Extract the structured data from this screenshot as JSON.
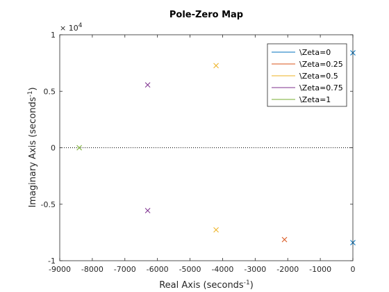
{
  "chart_data": {
    "type": "scatter",
    "title": "Pole-Zero Map",
    "xlabel": "Real Axis (seconds",
    "xlabel_sup": "-1",
    "xlabel_close": ")",
    "ylabel": "Imaginary Axis (seconds",
    "ylabel_sup": "-1",
    "ylabel_close": ")",
    "y_exponent_base": "× 10",
    "y_exponent_power": "4",
    "xlim": [
      -9000,
      0
    ],
    "ylim": [
      -10000,
      10000
    ],
    "x_ticks": [
      -9000,
      -8000,
      -7000,
      -6000,
      -5000,
      -4000,
      -3000,
      -2000,
      -1000,
      0
    ],
    "x_tick_labels": [
      "-9000",
      "-8000",
      "-7000",
      "-6000",
      "-5000",
      "-4000",
      "-3000",
      "-2000",
      "-1000",
      "0"
    ],
    "y_ticks": [
      -10000,
      -5000,
      0,
      5000,
      10000
    ],
    "y_tick_labels": [
      "-1",
      "-0.5",
      "0",
      "0.5",
      "1"
    ],
    "legend_position": "top-right",
    "marker": "x",
    "series": [
      {
        "name": "\\Zeta=0",
        "color": "#0072BD",
        "points": [
          [
            0,
            8400
          ],
          [
            0,
            -8400
          ]
        ]
      },
      {
        "name": "\\Zeta=0.25",
        "color": "#D95319",
        "points": [
          [
            -2100,
            -8130
          ]
        ]
      },
      {
        "name": "\\Zeta=0.5",
        "color": "#EDB120",
        "points": [
          [
            -4200,
            7270
          ],
          [
            -4200,
            -7270
          ]
        ]
      },
      {
        "name": "\\Zeta=0.75",
        "color": "#7E2F8E",
        "points": [
          [
            -6300,
            5560
          ],
          [
            -6300,
            -5560
          ]
        ]
      },
      {
        "name": "\\Zeta=1",
        "color": "#77AC30",
        "points": [
          [
            -8400,
            0
          ]
        ]
      }
    ]
  }
}
